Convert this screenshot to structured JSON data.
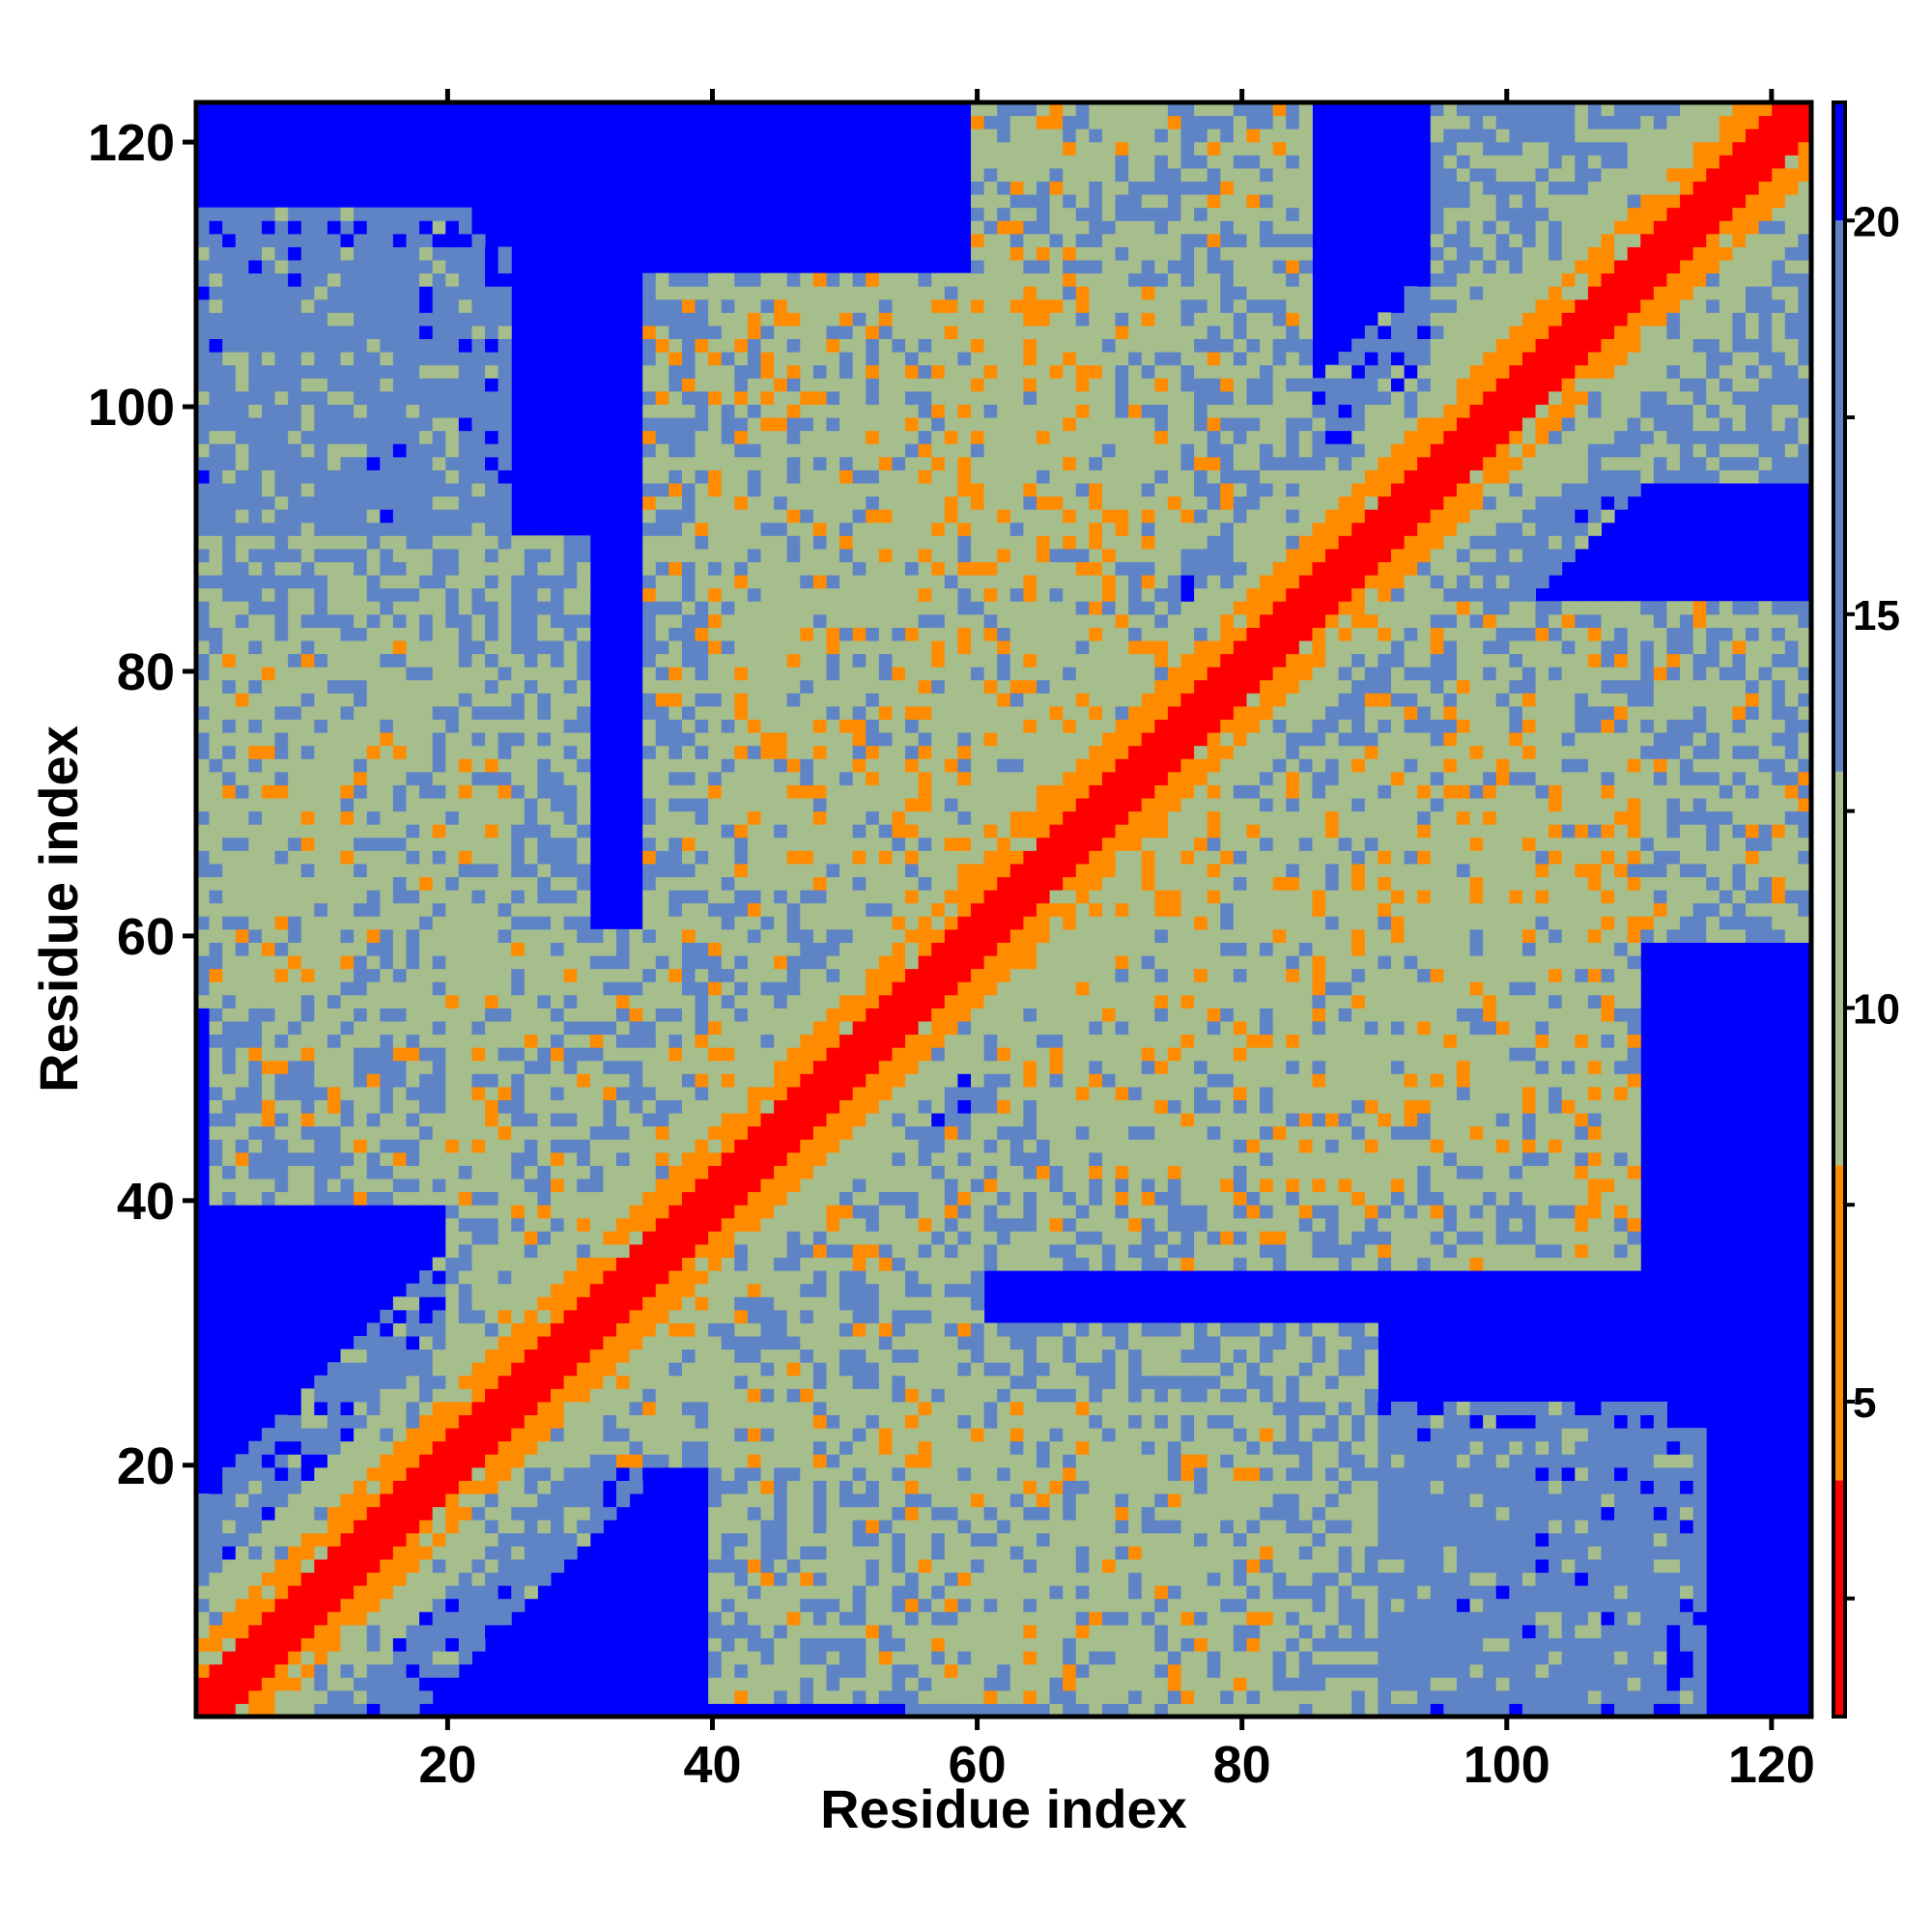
{
  "chart_data": {
    "type": "heatmap",
    "title": "",
    "xlabel": "Residue index",
    "ylabel": "Residue index",
    "xlim": [
      1,
      123
    ],
    "ylim": [
      1,
      123
    ],
    "xticks": [
      20,
      40,
      60,
      80,
      100,
      120
    ],
    "yticks": [
      20,
      40,
      60,
      80,
      100,
      120
    ],
    "colorbar": {
      "ticks": [
        5,
        10,
        15,
        20
      ],
      "range": [
        1,
        21.5
      ],
      "colors": [
        "#ff0000",
        "#ff8c00",
        "#a6bd8c",
        "#5e84c6",
        "#0000ff"
      ]
    },
    "grid": false,
    "legend": "colorbar-right",
    "n_residues": 123,
    "contact_regions": [
      {
        "x": [
          1,
          123
        ],
        "y": [
          1,
          123
        ],
        "level": 1,
        "note_values": "diagonal"
      },
      {
        "x": [
          2,
          24
        ],
        "y": [
          88,
          112
        ],
        "level": 17
      },
      {
        "x": [
          2,
          24
        ],
        "y": [
          40,
          82
        ],
        "level": 12
      },
      {
        "x": [
          20,
          60
        ],
        "y": [
          20,
          45
        ],
        "level": 12
      },
      {
        "x": [
          35,
          75
        ],
        "y": [
          60,
          110
        ],
        "level": 12
      },
      {
        "x": [
          55,
          90
        ],
        "y": [
          1,
          30
        ],
        "level": 13
      },
      {
        "x": [
          65,
          110
        ],
        "y": [
          40,
          70
        ],
        "level": 12
      },
      {
        "x": [
          90,
          123
        ],
        "y": [
          60,
          85
        ],
        "level": 12
      },
      {
        "x": [
          95,
          123
        ],
        "y": [
          100,
          123
        ],
        "level": 14
      },
      {
        "x": [
          90,
          115
        ],
        "y": [
          1,
          22
        ],
        "level": 17
      }
    ]
  }
}
